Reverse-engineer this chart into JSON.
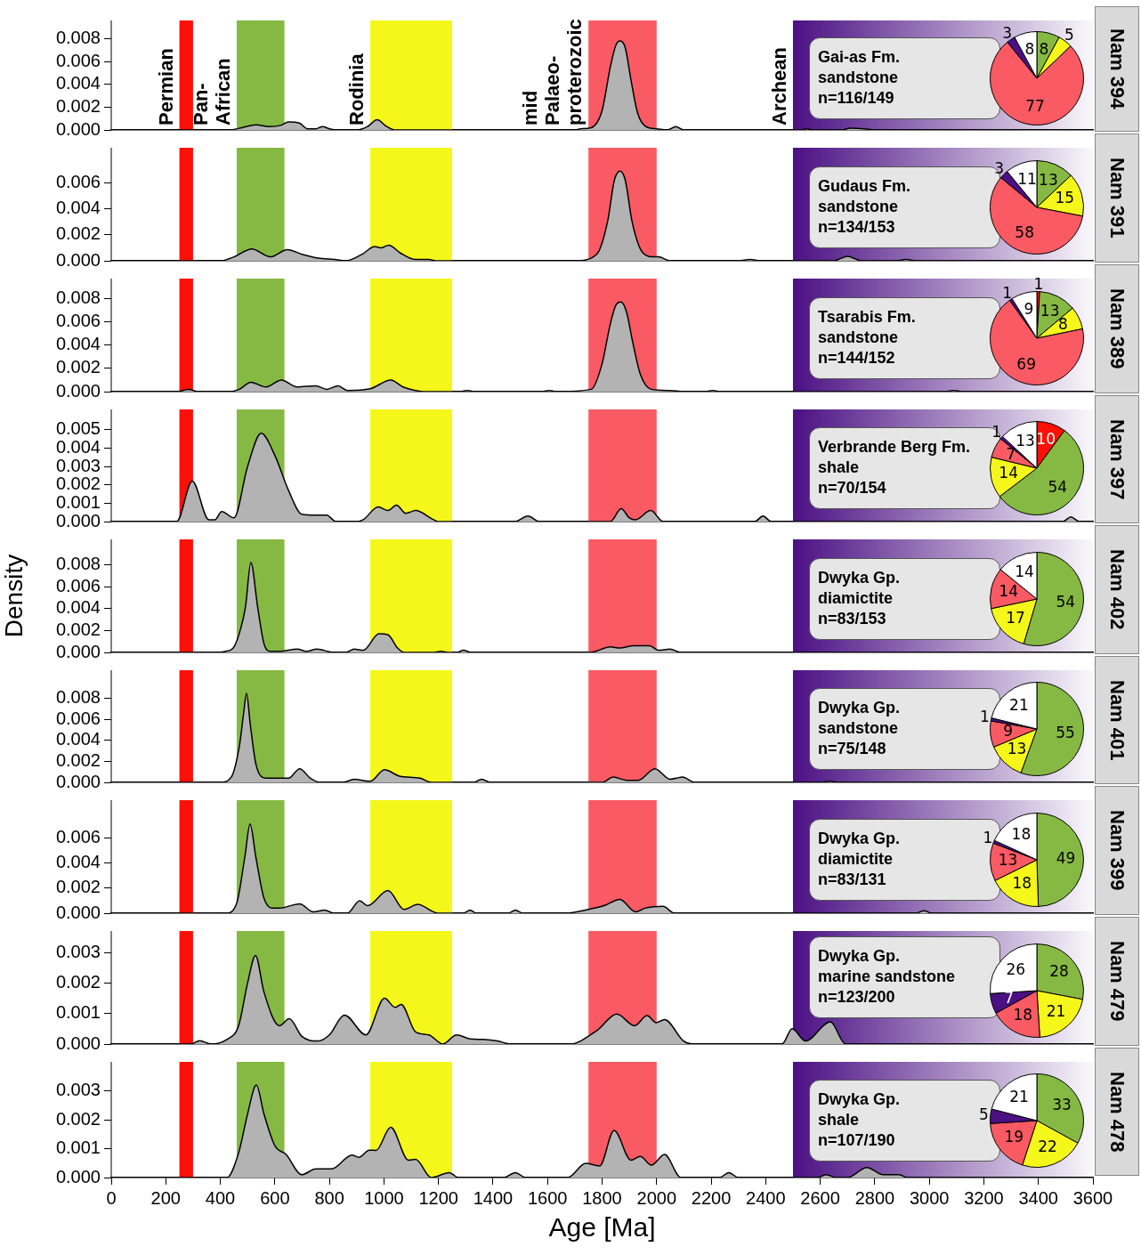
{
  "chart_data": [
    {
      "type": "area",
      "annotations": [
        "Gai-as Fm.\nsandstone\nn=116/149"
      ],
      "color": "#b3b3b3",
      "xlim": [
        0,
        3600
      ],
      "ylim": [
        0,
        0.0096
      ],
      "tick_labels": "y",
      "yticks": [
        {
          "value": 0,
          "label": "0.000"
        },
        {
          "value": 0.002,
          "label": "0.002"
        },
        {
          "value": 0.004,
          "label": "0.004"
        },
        {
          "value": 0.006,
          "label": "0.006"
        },
        {
          "value": 0.008,
          "label": "0.008"
        }
      ],
      "bands": [
        {
          "axis": "x",
          "from": 250,
          "to": 300,
          "label": "Permian",
          "color": "#fd1008"
        },
        {
          "axis": "x",
          "from": 460,
          "to": 635,
          "label": "Pan-\nAfrican",
          "color": "#86b943"
        },
        {
          "axis": "x",
          "from": 950,
          "to": 1250,
          "label": "Rodinia",
          "color": "#f5f71a"
        },
        {
          "axis": "x",
          "from": 1750,
          "to": 2000,
          "label": "mid\nPalaeo-\nproterozoic",
          "color": "#f95a63"
        },
        {
          "axis": "x",
          "from": 2500,
          "to": 3600,
          "label": "Archean",
          "color": "#4b1083"
        }
      ],
      "x": [
        0,
        430,
        480,
        530,
        580,
        620,
        650,
        690,
        720,
        750,
        775,
        800,
        830,
        900,
        940,
        975,
        1010,
        1040,
        1700,
        1720,
        1760,
        1800,
        1830,
        1850,
        1866,
        1885,
        1905,
        1930,
        1960,
        2000,
        2040,
        2070,
        2100,
        2530,
        2550,
        2580,
        2680,
        2710,
        2760,
        2800,
        3600
      ],
      "values": [
        0,
        0,
        0.0002,
        0.00045,
        0.0003,
        0.0004,
        0.0007,
        0.0006,
        0.0001,
        0.0001,
        0.0003,
        0.0001,
        0,
        0,
        0.0003,
        0.0009,
        0.0003,
        0,
        0,
        0.0001,
        0.0002,
        0.0017,
        0.0055,
        0.0074,
        0.0078,
        0.0072,
        0.0045,
        0.0015,
        0.0003,
        0.0001,
        0,
        0.0003,
        0,
        0,
        0.0001,
        0,
        0,
        0.00015,
        0.0001,
        0,
        0
      ]
    },
    {
      "type": "pie",
      "title": "Nam 394",
      "categories": [
        null,
        null,
        null,
        null,
        null
      ],
      "values": [
        8,
        5,
        77,
        3,
        8
      ],
      "colors": [
        "#86b943",
        "#f5f71a",
        "#f95a63",
        "#4b1083",
        "#ffffff"
      ],
      "data_labels": true
    },
    {
      "type": "area",
      "annotations": [
        "Gudaus Fm.\nsandstone\nn=134/153"
      ],
      "color": "#b3b3b3",
      "xlim": [
        0,
        3600
      ],
      "ylim": [
        0,
        0.0087
      ],
      "tick_labels": "y",
      "yticks": [
        {
          "value": 0,
          "label": "0.000"
        },
        {
          "value": 0.002,
          "label": "0.002"
        },
        {
          "value": 0.004,
          "label": "0.004"
        },
        {
          "value": 0.006,
          "label": "0.006"
        }
      ],
      "bands": [
        {
          "axis": "x",
          "from": 250,
          "to": 300,
          "color": "#fd1008"
        },
        {
          "axis": "x",
          "from": 460,
          "to": 635,
          "color": "#86b943"
        },
        {
          "axis": "x",
          "from": 950,
          "to": 1250,
          "color": "#f5f71a"
        },
        {
          "axis": "x",
          "from": 1750,
          "to": 2000,
          "color": "#f95a63"
        },
        {
          "axis": "x",
          "from": 2500,
          "to": 3600,
          "color": "#4b1083"
        }
      ],
      "x": [
        0,
        400,
        450,
        516,
        583,
        646,
        700,
        760,
        820,
        860,
        920,
        966,
        990,
        1018,
        1060,
        1116,
        1140,
        1165,
        1190,
        1700,
        1780,
        1820,
        1845,
        1866,
        1885,
        1910,
        1950,
        1990,
        2007,
        2050,
        2300,
        2343,
        2380,
        2650,
        2700,
        2750,
        2880,
        2915,
        2950,
        3600
      ],
      "values": [
        0,
        0,
        0.0003,
        0.0009,
        0.0003,
        0.00086,
        0.0005,
        0.0002,
        0.0001,
        0,
        0.0005,
        0.0011,
        0.001,
        0.0012,
        0.0006,
        0.0001,
        0.0001,
        0.0001,
        0,
        0,
        0.0005,
        0.003,
        0.0062,
        0.0069,
        0.0062,
        0.003,
        0.0006,
        0.0003,
        0.0003,
        0,
        0,
        0.0001,
        0,
        0,
        0.00035,
        0,
        0,
        0.0001,
        0,
        0
      ]
    },
    {
      "type": "pie",
      "title": "Nam 391",
      "categories": [
        null,
        null,
        null,
        null,
        null
      ],
      "values": [
        13,
        15,
        58,
        3,
        11
      ],
      "colors": [
        "#86b943",
        "#f5f71a",
        "#f95a63",
        "#4b1083",
        "#ffffff"
      ],
      "data_labels": true
    },
    {
      "type": "area",
      "annotations": [
        "Tsarabis Fm.\nsandstone\nn=144/152"
      ],
      "color": "#b3b3b3",
      "xlim": [
        0,
        3600
      ],
      "ylim": [
        0,
        0.0097
      ],
      "tick_labels": "y",
      "yticks": [
        {
          "value": 0,
          "label": "0.000"
        },
        {
          "value": 0.002,
          "label": "0.002"
        },
        {
          "value": 0.004,
          "label": "0.004"
        },
        {
          "value": 0.006,
          "label": "0.006"
        },
        {
          "value": 0.008,
          "label": "0.008"
        }
      ],
      "bands": [
        {
          "axis": "x",
          "from": 250,
          "to": 300,
          "color": "#fd1008"
        },
        {
          "axis": "x",
          "from": 460,
          "to": 635,
          "color": "#86b943"
        },
        {
          "axis": "x",
          "from": 950,
          "to": 1250,
          "color": "#f5f71a"
        },
        {
          "axis": "x",
          "from": 1750,
          "to": 2000,
          "color": "#f95a63"
        },
        {
          "axis": "x",
          "from": 2500,
          "to": 3600,
          "color": "#4b1083"
        }
      ],
      "x": [
        0,
        240,
        284,
        320,
        430,
        470,
        512,
        567,
        624,
        682,
        750,
        790,
        832,
        866,
        950,
        1025,
        1070,
        1116,
        1150,
        1280,
        1307,
        1330,
        1580,
        1606,
        1630,
        1760,
        1800,
        1830,
        1850,
        1869,
        1890,
        1910,
        1940,
        1980,
        2048,
        2100,
        2180,
        2206,
        2230,
        3060,
        3091,
        3120,
        3600
      ],
      "values": [
        0,
        0,
        0.0002,
        0,
        0,
        0.0002,
        0.0008,
        0.0004,
        0.001,
        0.0004,
        0.0005,
        0.0002,
        0.0005,
        0.0001,
        0.00025,
        0.001,
        0.0004,
        0.0001,
        0,
        0,
        0.0001,
        0,
        0,
        0.0001,
        0,
        0.0002,
        0.0024,
        0.0058,
        0.0074,
        0.0077,
        0.0068,
        0.0045,
        0.0015,
        0.0002,
        0.0001,
        0,
        0,
        0.0001,
        0,
        0,
        0.0001,
        0,
        0
      ]
    },
    {
      "type": "pie",
      "title": "Nam 389",
      "categories": [
        null,
        null,
        null,
        null,
        null,
        null
      ],
      "values": [
        1,
        13,
        8,
        69,
        1,
        9
      ],
      "colors": [
        "#fd1008",
        "#86b943",
        "#f5f71a",
        "#f95a63",
        "#4b1083",
        "#ffffff"
      ],
      "data_labels": true
    },
    {
      "type": "area",
      "annotations": [
        "Verbrande Berg Fm.\nshale\nn=70/154"
      ],
      "color": "#b3b3b3",
      "xlim": [
        0,
        3600
      ],
      "ylim": [
        0,
        0.0061
      ],
      "tick_labels": "y",
      "yticks": [
        {
          "value": 0,
          "label": "0.000"
        },
        {
          "value": 0.001,
          "label": "0.001"
        },
        {
          "value": 0.002,
          "label": "0.002"
        },
        {
          "value": 0.003,
          "label": "0.003"
        },
        {
          "value": 0.004,
          "label": "0.004"
        },
        {
          "value": 0.005,
          "label": "0.005"
        }
      ],
      "bands": [
        {
          "axis": "x",
          "from": 250,
          "to": 300,
          "color": "#fd1008"
        },
        {
          "axis": "x",
          "from": 460,
          "to": 635,
          "color": "#86b943"
        },
        {
          "axis": "x",
          "from": 950,
          "to": 1250,
          "color": "#f5f71a"
        },
        {
          "axis": "x",
          "from": 1750,
          "to": 2000,
          "color": "#f95a63"
        },
        {
          "axis": "x",
          "from": 2500,
          "to": 3600,
          "color": "#4b1083"
        }
      ],
      "x": [
        0,
        240,
        297,
        358,
        380,
        405,
        450,
        500,
        550,
        600,
        650,
        699,
        750,
        790,
        824,
        900,
        924,
        979,
        1015,
        1046,
        1080,
        1116,
        1182,
        1200,
        1480,
        1528,
        1570,
        1830,
        1870,
        1900,
        1923,
        1978,
        2024,
        2360,
        2390,
        2420,
        3490,
        3519,
        3550,
        3600
      ],
      "values": [
        0,
        0,
        0.0022,
        0.0001,
        0.0001,
        0.00055,
        0.0002,
        0.003,
        0.0048,
        0.0036,
        0.0017,
        0.0004,
        0.00035,
        0.00035,
        0,
        0,
        0.0001,
        0.0008,
        0.0006,
        0.0009,
        0.00045,
        0.0006,
        0.0001,
        0,
        0,
        0.0003,
        0,
        0,
        0.0007,
        0.0002,
        0.0001,
        0.0006,
        0,
        0,
        0.0003,
        0,
        0,
        0.00025,
        0,
        0
      ]
    },
    {
      "type": "pie",
      "title": "Nam 397",
      "categories": [
        null,
        null,
        null,
        null,
        null,
        null
      ],
      "values": [
        10,
        54,
        14,
        7,
        1,
        13
      ],
      "colors": [
        "#fd1008",
        "#86b943",
        "#f5f71a",
        "#f95a63",
        "#4b1083",
        "#ffffff"
      ],
      "data_labels": true
    },
    {
      "type": "area",
      "annotations": [
        "Dwyka Gp.\ndiamictite\nn=83/153"
      ],
      "color": "#b3b3b3",
      "xlim": [
        0,
        3600
      ],
      "ylim": [
        0,
        0.0103
      ],
      "tick_labels": "y",
      "ylabel": "Density",
      "yticks": [
        {
          "value": 0,
          "label": "0.000"
        },
        {
          "value": 0.002,
          "label": "0.002"
        },
        {
          "value": 0.004,
          "label": "0.004"
        },
        {
          "value": 0.006,
          "label": "0.006"
        },
        {
          "value": 0.008,
          "label": "0.008"
        }
      ],
      "bands": [
        {
          "axis": "x",
          "from": 250,
          "to": 300,
          "color": "#fd1008"
        },
        {
          "axis": "x",
          "from": 460,
          "to": 635,
          "color": "#86b943"
        },
        {
          "axis": "x",
          "from": 950,
          "to": 1250,
          "color": "#f5f71a"
        },
        {
          "axis": "x",
          "from": 1750,
          "to": 2000,
          "color": "#f95a63"
        },
        {
          "axis": "x",
          "from": 2500,
          "to": 3600,
          "color": "#4b1083"
        }
      ],
      "x": [
        0,
        380,
        420,
        450,
        475,
        492,
        512,
        537,
        560,
        583,
        617,
        682,
        716,
        754,
        816,
        860,
        891,
        924,
        982,
        1015,
        1050,
        1074,
        1180,
        1208,
        1240,
        1270,
        1291,
        1320,
        1756,
        1831,
        1865,
        1915,
        1974,
        2007,
        2049,
        2089,
        3600
      ],
      "values": [
        0,
        0,
        0.0001,
        0.0005,
        0.0022,
        0.0041,
        0.0082,
        0.0041,
        0.0008,
        0.0001,
        0.0001,
        0.0003,
        0.0001,
        0.0003,
        0,
        0,
        0.0003,
        0.0002,
        0.0017,
        0.0016,
        0.0004,
        0,
        0,
        0.0001,
        0,
        0,
        0.0002,
        0,
        0,
        0.0005,
        0.0004,
        0.0006,
        0.0006,
        0.0002,
        0.0003,
        0,
        0
      ]
    },
    {
      "type": "pie",
      "title": "Nam 402",
      "categories": [
        null,
        null,
        null,
        null
      ],
      "values": [
        54,
        17,
        14,
        14
      ],
      "colors": [
        "#86b943",
        "#f5f71a",
        "#f95a63",
        "#ffffff"
      ],
      "data_labels": true
    },
    {
      "type": "area",
      "annotations": [
        "Dwyka Gp.\nsandstone\nn=75/148"
      ],
      "color": "#b3b3b3",
      "xlim": [
        0,
        3600
      ],
      "ylim": [
        0,
        0.0107
      ],
      "tick_labels": "y",
      "yticks": [
        {
          "value": 0,
          "label": "0.000"
        },
        {
          "value": 0.002,
          "label": "0.002"
        },
        {
          "value": 0.004,
          "label": "0.004"
        },
        {
          "value": 0.006,
          "label": "0.006"
        },
        {
          "value": 0.008,
          "label": "0.008"
        }
      ],
      "bands": [
        {
          "axis": "x",
          "from": 250,
          "to": 300,
          "color": "#fd1008"
        },
        {
          "axis": "x",
          "from": 460,
          "to": 635,
          "color": "#86b943"
        },
        {
          "axis": "x",
          "from": 950,
          "to": 1250,
          "color": "#f5f71a"
        },
        {
          "axis": "x",
          "from": 1750,
          "to": 2000,
          "color": "#f95a63"
        },
        {
          "axis": "x",
          "from": 2500,
          "to": 3600,
          "color": "#4b1083"
        }
      ],
      "x": [
        0,
        400,
        440,
        470,
        485,
        496,
        510,
        530,
        567,
        617,
        650,
        691,
        730,
        767,
        850,
        891,
        950,
        1002,
        1057,
        1133,
        1174,
        1330,
        1358,
        1390,
        1800,
        1841,
        1890,
        1932,
        1994,
        2049,
        2095,
        2140,
        2600,
        2634,
        2670,
        3600
      ],
      "values": [
        0,
        0,
        0.0005,
        0.0035,
        0.0065,
        0.0085,
        0.0055,
        0.0018,
        0.0004,
        0.0004,
        0.0004,
        0.0013,
        0.0004,
        0,
        0,
        0.0003,
        0.0001,
        0.0012,
        0.0006,
        0.0004,
        0,
        0,
        0.0003,
        0,
        0,
        0.0005,
        0.0002,
        0.0002,
        0.0013,
        0.0003,
        0.0005,
        0,
        0,
        0.0001,
        0,
        0
      ]
    },
    {
      "type": "pie",
      "title": "Nam 401",
      "categories": [
        null,
        null,
        null,
        null,
        null
      ],
      "values": [
        55,
        13,
        9,
        1,
        21
      ],
      "colors": [
        "#86b943",
        "#f5f71a",
        "#f95a63",
        "#4b1083",
        "#ffffff"
      ],
      "data_labels": true
    },
    {
      "type": "area",
      "annotations": [
        "Dwyka Gp.\ndiamictite\nn=83/131"
      ],
      "color": "#b3b3b3",
      "xlim": [
        0,
        3600
      ],
      "ylim": [
        0,
        0.009
      ],
      "tick_labels": "y",
      "yticks": [
        {
          "value": 0,
          "label": "0.000"
        },
        {
          "value": 0.002,
          "label": "0.002"
        },
        {
          "value": 0.004,
          "label": "0.004"
        },
        {
          "value": 0.006,
          "label": "0.006"
        }
      ],
      "bands": [
        {
          "axis": "x",
          "from": 250,
          "to": 300,
          "color": "#fd1008"
        },
        {
          "axis": "x",
          "from": 460,
          "to": 635,
          "color": "#86b943"
        },
        {
          "axis": "x",
          "from": 950,
          "to": 1250,
          "color": "#f5f71a"
        },
        {
          "axis": "x",
          "from": 1750,
          "to": 2000,
          "color": "#f95a63"
        },
        {
          "axis": "x",
          "from": 2500,
          "to": 3600,
          "color": "#4b1083"
        }
      ],
      "x": [
        0,
        420,
        460,
        490,
        509,
        530,
        560,
        591,
        617,
        691,
        741,
        783,
        816,
        866,
        911,
        940,
        1015,
        1074,
        1124,
        1199,
        1290,
        1316,
        1340,
        1455,
        1482,
        1510,
        1665,
        1750,
        1807,
        1865,
        1923,
        1957,
        2024,
        2065,
        2950,
        2980,
        3010,
        3600
      ],
      "values": [
        0,
        0,
        0.0008,
        0.0045,
        0.0071,
        0.0045,
        0.0012,
        0.0004,
        0.0004,
        0.00075,
        0.0001,
        0.00025,
        0,
        0,
        0.001,
        0.0006,
        0.0018,
        0.0003,
        0.0007,
        0,
        0,
        0.00024,
        0,
        0,
        0.00024,
        0,
        0,
        0.0003,
        0.0006,
        0.0011,
        0.0001,
        0.0004,
        0.00055,
        0,
        0,
        0.0002,
        0,
        0
      ]
    },
    {
      "type": "pie",
      "title": "Nam 399",
      "categories": [
        null,
        null,
        null,
        null,
        null
      ],
      "values": [
        49,
        18,
        13,
        1,
        18
      ],
      "colors": [
        "#86b943",
        "#f5f71a",
        "#f95a63",
        "#4b1083",
        "#ffffff"
      ],
      "data_labels": true
    },
    {
      "type": "area",
      "annotations": [
        "Dwyka Gp.\nmarine sandstone\nn=123/200"
      ],
      "color": "#b3b3b3",
      "xlim": [
        0,
        3600
      ],
      "ylim": [
        0,
        0.0037
      ],
      "tick_labels": "y",
      "yticks": [
        {
          "value": 0,
          "label": "0.000"
        },
        {
          "value": 0.001,
          "label": "0.001"
        },
        {
          "value": 0.002,
          "label": "0.002"
        },
        {
          "value": 0.003,
          "label": "0.003"
        }
      ],
      "bands": [
        {
          "axis": "x",
          "from": 250,
          "to": 300,
          "color": "#fd1008"
        },
        {
          "axis": "x",
          "from": 460,
          "to": 635,
          "color": "#86b943"
        },
        {
          "axis": "x",
          "from": 950,
          "to": 1250,
          "color": "#f5f71a"
        },
        {
          "axis": "x",
          "from": 1750,
          "to": 2000,
          "color": "#f95a63"
        },
        {
          "axis": "x",
          "from": 2500,
          "to": 3600,
          "color": "#4b1083"
        }
      ],
      "x": [
        0,
        290,
        325,
        366,
        424,
        467,
        500,
        529,
        560,
        617,
        653,
        699,
        758,
        800,
        855,
        934,
        1002,
        1041,
        1063,
        1116,
        1165,
        1216,
        1266,
        1316,
        1366,
        1416,
        1466,
        1681,
        1782,
        1854,
        1919,
        1965,
        1998,
        2029,
        2099,
        2132,
        2460,
        2497,
        2546,
        2637,
        2693,
        3600
      ],
      "values": [
        0,
        0,
        0.00011,
        0,
        0.00015,
        0.0006,
        0.002,
        0.0029,
        0.0017,
        0.0006,
        0.00083,
        0.00025,
        0.0001,
        0.0003,
        0.00095,
        0.0003,
        0.0015,
        0.0012,
        0.0013,
        0.0004,
        0.0003,
        0,
        0.0003,
        0.00017,
        0.00015,
        0.0001,
        0,
        0,
        0.00045,
        0.00098,
        0.0006,
        0.00093,
        0.0007,
        0.0008,
        0.0001,
        0,
        0,
        0.0005,
        0.0001,
        0.00073,
        0,
        0
      ]
    },
    {
      "type": "pie",
      "title": "Nam 479",
      "categories": [
        null,
        null,
        null,
        null,
        null
      ],
      "values": [
        28,
        21,
        18,
        7,
        26
      ],
      "colors": [
        "#86b943",
        "#f5f71a",
        "#f95a63",
        "#4b1083",
        "#ffffff"
      ],
      "data_labels": true
    },
    {
      "type": "area",
      "annotations": [
        "Dwyka Gp.\nshale\nn=107/190"
      ],
      "color": "#b3b3b3",
      "xlim": [
        0,
        3600
      ],
      "ylim": [
        0,
        0.004
      ],
      "xlabel": "Age [Ma]",
      "xticks": [
        0,
        200,
        400,
        600,
        800,
        1000,
        1200,
        1400,
        1600,
        1800,
        2000,
        2200,
        2400,
        2600,
        2800,
        3000,
        3200,
        3400,
        3600
      ],
      "yticks": [
        {
          "value": 0,
          "label": "0.000"
        },
        {
          "value": 0.001,
          "label": "0.001"
        },
        {
          "value": 0.002,
          "label": "0.002"
        },
        {
          "value": 0.003,
          "label": "0.003"
        }
      ],
      "bands": [
        {
          "axis": "x",
          "from": 250,
          "to": 300,
          "color": "#fd1008"
        },
        {
          "axis": "x",
          "from": 460,
          "to": 635,
          "color": "#86b943"
        },
        {
          "axis": "x",
          "from": 950,
          "to": 1250,
          "color": "#f5f71a"
        },
        {
          "axis": "x",
          "from": 1750,
          "to": 2000,
          "color": "#f95a63"
        },
        {
          "axis": "x",
          "from": 2500,
          "to": 3600,
          "color": "#4b1083"
        }
      ],
      "x": [
        0,
        424,
        467,
        500,
        532,
        560,
        600,
        641,
        699,
        750,
        808,
        883,
        908,
        946,
        971,
        1025,
        1090,
        1116,
        1174,
        1240,
        1273,
        1440,
        1482,
        1520,
        1674,
        1740,
        1791,
        1844,
        1906,
        1940,
        1981,
        2029,
        2089,
        2230,
        2265,
        2300,
        2590,
        2621,
        2660,
        2700,
        2771,
        2830,
        2860,
        2889,
        2920,
        3600
      ],
      "values": [
        0,
        0,
        0.00085,
        0.0022,
        0.0032,
        0.0022,
        0.0011,
        0.0008,
        0.0001,
        0.0003,
        0.0003,
        0.00078,
        0.0007,
        0.00095,
        0.00094,
        0.00174,
        0.0006,
        0.00063,
        0,
        0.00017,
        0,
        0,
        0.00017,
        0,
        0,
        0.00049,
        0.0004,
        0.00163,
        0.0006,
        0.00073,
        0.00043,
        0.0008,
        0,
        0,
        0.00017,
        0,
        0,
        0.0001,
        0,
        0,
        0.00035,
        0.0001,
        0.0001,
        0.0001,
        0,
        0
      ]
    },
    {
      "type": "pie",
      "title": "Nam 478",
      "categories": [
        null,
        null,
        null,
        null,
        null
      ],
      "values": [
        33,
        22,
        19,
        5,
        21
      ],
      "colors": [
        "#86b943",
        "#f5f71a",
        "#f95a63",
        "#4b1083",
        "#ffffff"
      ],
      "data_labels": true
    }
  ]
}
